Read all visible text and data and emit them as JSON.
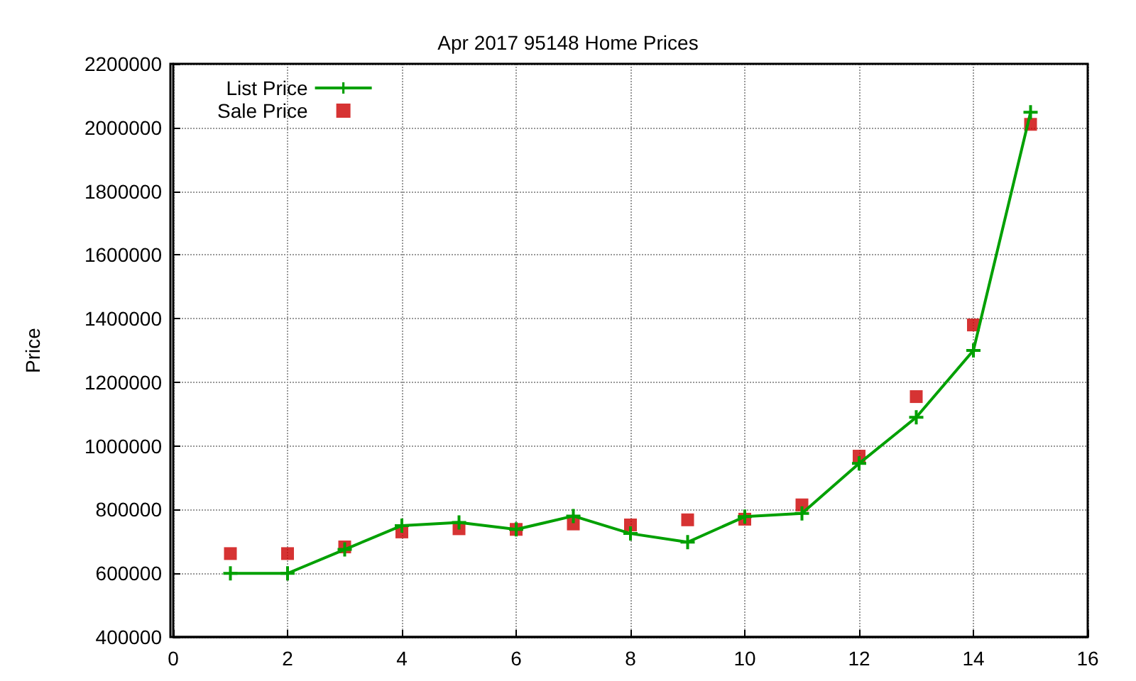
{
  "chart_data": {
    "type": "line",
    "title": "Apr 2017 95148 Home Prices",
    "ylabel": "Price",
    "x": [
      1,
      2,
      3,
      4,
      5,
      6,
      7,
      8,
      9,
      10,
      11,
      12,
      13,
      14,
      15
    ],
    "series": [
      {
        "name": "List Price",
        "color": "#00a000",
        "marker": "cross",
        "values": [
          600000,
          600000,
          675000,
          750000,
          760000,
          738000,
          780000,
          725000,
          698000,
          778000,
          788000,
          945000,
          1090000,
          1300000,
          2048000
        ]
      },
      {
        "name": "Sale Price",
        "type": "scatter",
        "color": "#cc0000",
        "marker": "square",
        "values": [
          662000,
          662000,
          683000,
          730000,
          740000,
          738000,
          755000,
          752000,
          768000,
          770000,
          815000,
          968000,
          1155000,
          1380000,
          2010000
        ]
      }
    ],
    "xlim": [
      0,
      16
    ],
    "xticks": [
      0,
      2,
      4,
      6,
      8,
      10,
      12,
      14,
      16
    ],
    "ylim": [
      400000,
      2200000
    ],
    "yticks": [
      400000,
      600000,
      800000,
      1000000,
      1200000,
      1400000,
      1600000,
      1800000,
      2000000,
      2200000
    ],
    "grid": true,
    "legend": "top left",
    "line_style": "solid"
  }
}
